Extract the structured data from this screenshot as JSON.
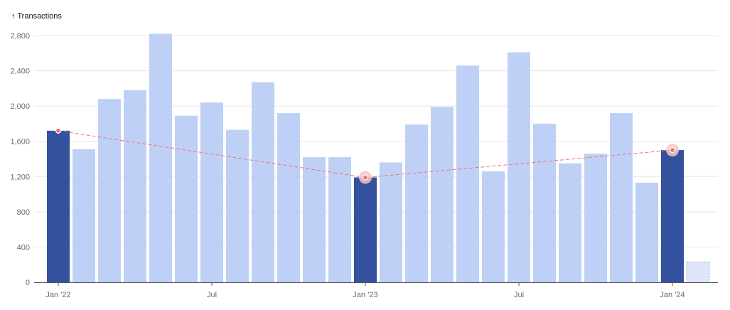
{
  "chart_data": {
    "type": "bar",
    "title": "↑ Transactions",
    "ylim": [
      0,
      2800
    ],
    "yticks": [
      "0",
      "400",
      "800",
      "1,200",
      "1,600",
      "2,000",
      "2,400",
      "2,800"
    ],
    "ytick_values": [
      0,
      400,
      800,
      1200,
      1600,
      2000,
      2400,
      2800
    ],
    "x_tick_labels": [
      {
        "index": 0,
        "label": "Jan '22"
      },
      {
        "index": 6,
        "label": "Jul"
      },
      {
        "index": 12,
        "label": "Jan '23"
      },
      {
        "index": 18,
        "label": "Jul"
      },
      {
        "index": 24,
        "label": "Jan '24"
      }
    ],
    "values": [
      1720,
      1510,
      2080,
      2180,
      2820,
      1890,
      2040,
      1730,
      2270,
      1920,
      1420,
      1420,
      1190,
      1360,
      1790,
      1990,
      2460,
      1260,
      2610,
      1800,
      1350,
      1460,
      1920,
      1130,
      1500,
      230
    ],
    "highlight_indices": [
      0,
      12,
      24
    ],
    "incomplete_index": 25,
    "trend_indices": [
      0,
      12,
      24
    ],
    "grid": true,
    "colors": {
      "bar": "#bfd0f7",
      "highlight": "#33519c",
      "incomplete": "#dfe6fb",
      "incomplete_border": "#8ea4d6",
      "trend": "#e87575",
      "point_halo": "#f6c6c6"
    }
  }
}
